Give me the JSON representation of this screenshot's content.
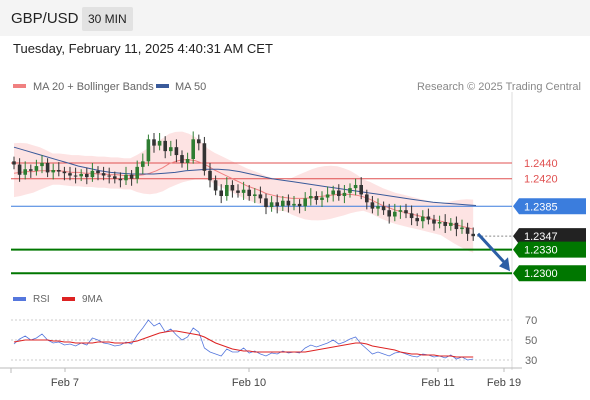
{
  "header": {
    "symbol": "GBP/USD",
    "interval": "30 MIN"
  },
  "timestamp": "Tuesday, February 11, 2025 4:40:31 AM CET",
  "colors": {
    "up": "#2e7d32",
    "down": "#333333",
    "ma20": "#f08080",
    "band": "#fde3e3",
    "ma50": "#3a5a9a",
    "support": "#007700",
    "resistance": "#e05050",
    "current": "#3b7ddd",
    "last": "#222222",
    "arrow": "#2c5ea5",
    "rsi": "#5577dd",
    "rsi_ma": "#dd2222"
  },
  "chart_data": [
    {
      "type": "candlestick",
      "title": "GBP/USD",
      "interval": "30 MIN",
      "legend": [
        {
          "label": "MA 20 + Bollinger Bands",
          "color": "#f08080"
        },
        {
          "label": "MA 50",
          "color": "#3a5a9a"
        }
      ],
      "legend_position": "top-left",
      "credit": "Research © 2025 Trading Central",
      "ylim": [
        1.2285,
        1.2525
      ],
      "x_labels": [
        "Feb 7",
        "Feb 10",
        "Feb 11",
        "Feb 19"
      ],
      "levels": [
        {
          "value": 1.244,
          "label": "1.2440",
          "kind": "resistance"
        },
        {
          "value": 1.242,
          "label": "1.2420",
          "kind": "resistance"
        },
        {
          "value": 1.2385,
          "label": "1.2385",
          "kind": "current"
        },
        {
          "value": 1.2347,
          "label": "1.2347",
          "kind": "last"
        },
        {
          "value": 1.233,
          "label": "1.2330",
          "kind": "support"
        },
        {
          "value": 1.23,
          "label": "1.2300",
          "kind": "support"
        }
      ],
      "arrow": {
        "from": 1.235,
        "to": 1.23,
        "direction": "down"
      },
      "series": [
        {
          "name": "price",
          "values": [
            1.2438,
            1.2425,
            1.2432,
            1.243,
            1.2436,
            1.244,
            1.2428,
            1.2431,
            1.2429,
            1.2427,
            1.2424,
            1.2423,
            1.2426,
            1.2422,
            1.243,
            1.2427,
            1.2424,
            1.2423,
            1.242,
            1.2418,
            1.2425,
            1.242,
            1.2435,
            1.2442,
            1.247,
            1.2462,
            1.2468,
            1.2455,
            1.246,
            1.245,
            1.244,
            1.2445,
            1.247,
            1.2465,
            1.243,
            1.2418,
            1.2405,
            1.2398,
            1.2412,
            1.2405,
            1.2402,
            1.2406,
            1.2398,
            1.24,
            1.2395,
            1.2384,
            1.239,
            1.2385,
            1.2392,
            1.2386,
            1.2388,
            1.2385,
            1.2395,
            1.2398,
            1.2393,
            1.2396,
            1.24,
            1.2405,
            1.2398,
            1.2402,
            1.2408,
            1.2412,
            1.24,
            1.239,
            1.2382,
            1.2385,
            1.238,
            1.2372,
            1.2378,
            1.238,
            1.2376,
            1.237,
            1.2366,
            1.2372,
            1.2368,
            1.2363,
            1.2365,
            1.236,
            1.2364,
            1.2356,
            1.2358,
            1.235,
            1.2347
          ]
        },
        {
          "name": "MA 20",
          "values": [
            1.2427,
            1.2428,
            1.2429,
            1.2429,
            1.243,
            1.243,
            1.243,
            1.243,
            1.2429,
            1.2428,
            1.2428,
            1.2427,
            1.2427,
            1.2426,
            1.2426,
            1.2425,
            1.2425,
            1.2424,
            1.2424,
            1.2424,
            1.2425,
            1.2427,
            1.243,
            1.2434,
            1.2439,
            1.2442,
            1.2444,
            1.2444,
            1.2443,
            1.244,
            1.2436,
            1.2431,
            1.2427,
            1.2423,
            1.2419,
            1.2415,
            1.2411,
            1.2408,
            1.2405,
            1.2401,
            1.2399,
            1.2397,
            1.2396,
            1.2395,
            1.2395,
            1.2395,
            1.2396,
            1.2397,
            1.2398,
            1.2399,
            1.24,
            1.24,
            1.24,
            1.2399,
            1.2397,
            1.2394,
            1.239,
            1.2386,
            1.2383,
            1.238,
            1.2378,
            1.2376,
            1.2374,
            1.2372,
            1.237,
            1.2368,
            1.2366,
            1.2364,
            1.2362,
            1.236,
            1.2358,
            1.2356
          ]
        },
        {
          "name": "MA 50",
          "values": [
            1.246,
            1.2456,
            1.2452,
            1.2448,
            1.2444,
            1.244,
            1.2436,
            1.2433,
            1.243,
            1.2428,
            1.2427,
            1.2426,
            1.2426,
            1.2426,
            1.2427,
            1.2428,
            1.243,
            1.2431,
            1.2432,
            1.2432,
            1.2431,
            1.2429,
            1.2426,
            1.2423,
            1.242,
            1.2418,
            1.2416,
            1.2414,
            1.2412,
            1.241,
            1.2408,
            1.2406,
            1.2404,
            1.2402,
            1.24,
            1.2398,
            1.2396,
            1.2394,
            1.2392,
            1.239,
            1.2389,
            1.2388,
            1.2387,
            1.2386
          ]
        }
      ]
    },
    {
      "type": "line",
      "title": "RSI",
      "legend": [
        {
          "label": "RSI",
          "color": "#5577dd"
        },
        {
          "label": "9MA",
          "color": "#dd2222"
        }
      ],
      "legend_position": "top-left",
      "ylim": [
        25,
        80
      ],
      "y_ticks": [
        "70",
        "50",
        "30"
      ],
      "series": [
        {
          "name": "RSI",
          "values": [
            46,
            51,
            54,
            50,
            52,
            56,
            50,
            47,
            48,
            45,
            46,
            44,
            47,
            45,
            52,
            50,
            47,
            46,
            44,
            45,
            48,
            46,
            55,
            62,
            70,
            64,
            67,
            58,
            61,
            55,
            50,
            53,
            62,
            58,
            42,
            38,
            36,
            34,
            41,
            38,
            38,
            42,
            37,
            39,
            36,
            34,
            37,
            36,
            39,
            37,
            38,
            37,
            42,
            45,
            43,
            45,
            47,
            50,
            46,
            48,
            51,
            53,
            46,
            41,
            36,
            38,
            36,
            34,
            37,
            38,
            36,
            34,
            33,
            36,
            35,
            33,
            34,
            32,
            35,
            31,
            33,
            30,
            31
          ]
        },
        {
          "name": "9MA",
          "values": [
            48,
            49,
            50,
            50,
            50,
            50,
            50,
            49,
            49,
            48,
            48,
            47,
            47,
            47,
            47,
            48,
            48,
            48,
            47,
            47,
            47,
            48,
            49,
            51,
            53,
            55,
            57,
            58,
            59,
            59,
            58,
            57,
            56,
            55,
            53,
            50,
            47,
            45,
            43,
            41,
            40,
            39,
            39,
            38,
            38,
            38,
            38,
            38,
            38,
            38,
            38,
            38,
            38,
            39,
            40,
            41,
            42,
            43,
            44,
            45,
            46,
            47,
            47,
            46,
            44,
            43,
            42,
            41,
            40,
            38,
            37,
            36,
            36,
            35,
            35,
            35,
            34,
            34,
            34,
            33,
            33,
            33,
            33
          ]
        }
      ]
    }
  ]
}
